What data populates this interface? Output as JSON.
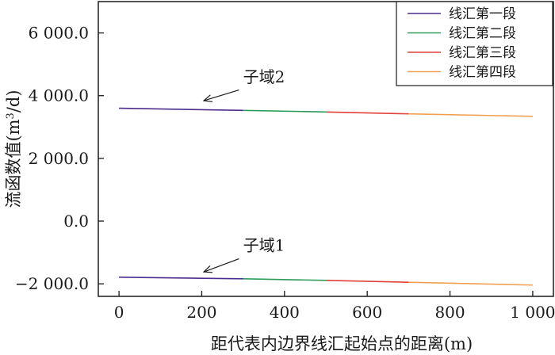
{
  "chart_data": {
    "type": "line",
    "xlabel": "距代表内边界线汇起始点的距离(m)",
    "ylabel": "流函数值(m³/d)",
    "ylabel_main": "流函数值(m",
    "ylabel_sup": "3",
    "ylabel_tail": "/d)",
    "xlim": [
      -50,
      1050
    ],
    "ylim": [
      -2400,
      7000
    ],
    "xticks": [
      0,
      200,
      400,
      600,
      800,
      1000
    ],
    "xtick_labels": [
      "0",
      "200",
      "400",
      "600",
      "800",
      "1 000"
    ],
    "yticks": [
      -2000,
      0,
      2000,
      4000,
      6000
    ],
    "ytick_labels": [
      "−2 000.0",
      "0.0",
      "2 000.0",
      "4 000.0",
      "6 000.0"
    ],
    "grid": false,
    "legend_position": "top-right",
    "series": [
      {
        "name": "线汇第一段",
        "color": "#4b2c8f",
        "segments": [
          {
            "x": [
              0,
              300
            ],
            "y": [
              3600,
              3530
            ]
          },
          {
            "x": [
              0,
              300
            ],
            "y": [
              -1790,
              -1840
            ]
          }
        ]
      },
      {
        "name": "线汇第二段",
        "color": "#2e9a58",
        "segments": [
          {
            "x": [
              300,
              500
            ],
            "y": [
              3530,
              3480
            ]
          },
          {
            "x": [
              300,
              500
            ],
            "y": [
              -1840,
              -1890
            ]
          }
        ]
      },
      {
        "name": "线汇第三段",
        "color": "#e04038",
        "segments": [
          {
            "x": [
              500,
              700
            ],
            "y": [
              3480,
              3420
            ]
          },
          {
            "x": [
              500,
              700
            ],
            "y": [
              -1890,
              -1950
            ]
          }
        ]
      },
      {
        "name": "线汇第四段",
        "color": "#f0a050",
        "segments": [
          {
            "x": [
              700,
              1000
            ],
            "y": [
              3420,
              3340
            ]
          },
          {
            "x": [
              700,
              1000
            ],
            "y": [
              -1950,
              -2040
            ]
          }
        ]
      }
    ],
    "annotations": [
      {
        "text": "子域2",
        "text_x": 300,
        "text_y": 4420,
        "arrow_from": [
          290,
          4180
        ],
        "arrow_to": [
          205,
          3840
        ]
      },
      {
        "text": "子域1",
        "text_x": 300,
        "text_y": -950,
        "arrow_from": [
          290,
          -1200
        ],
        "arrow_to": [
          205,
          -1620
        ]
      }
    ]
  }
}
